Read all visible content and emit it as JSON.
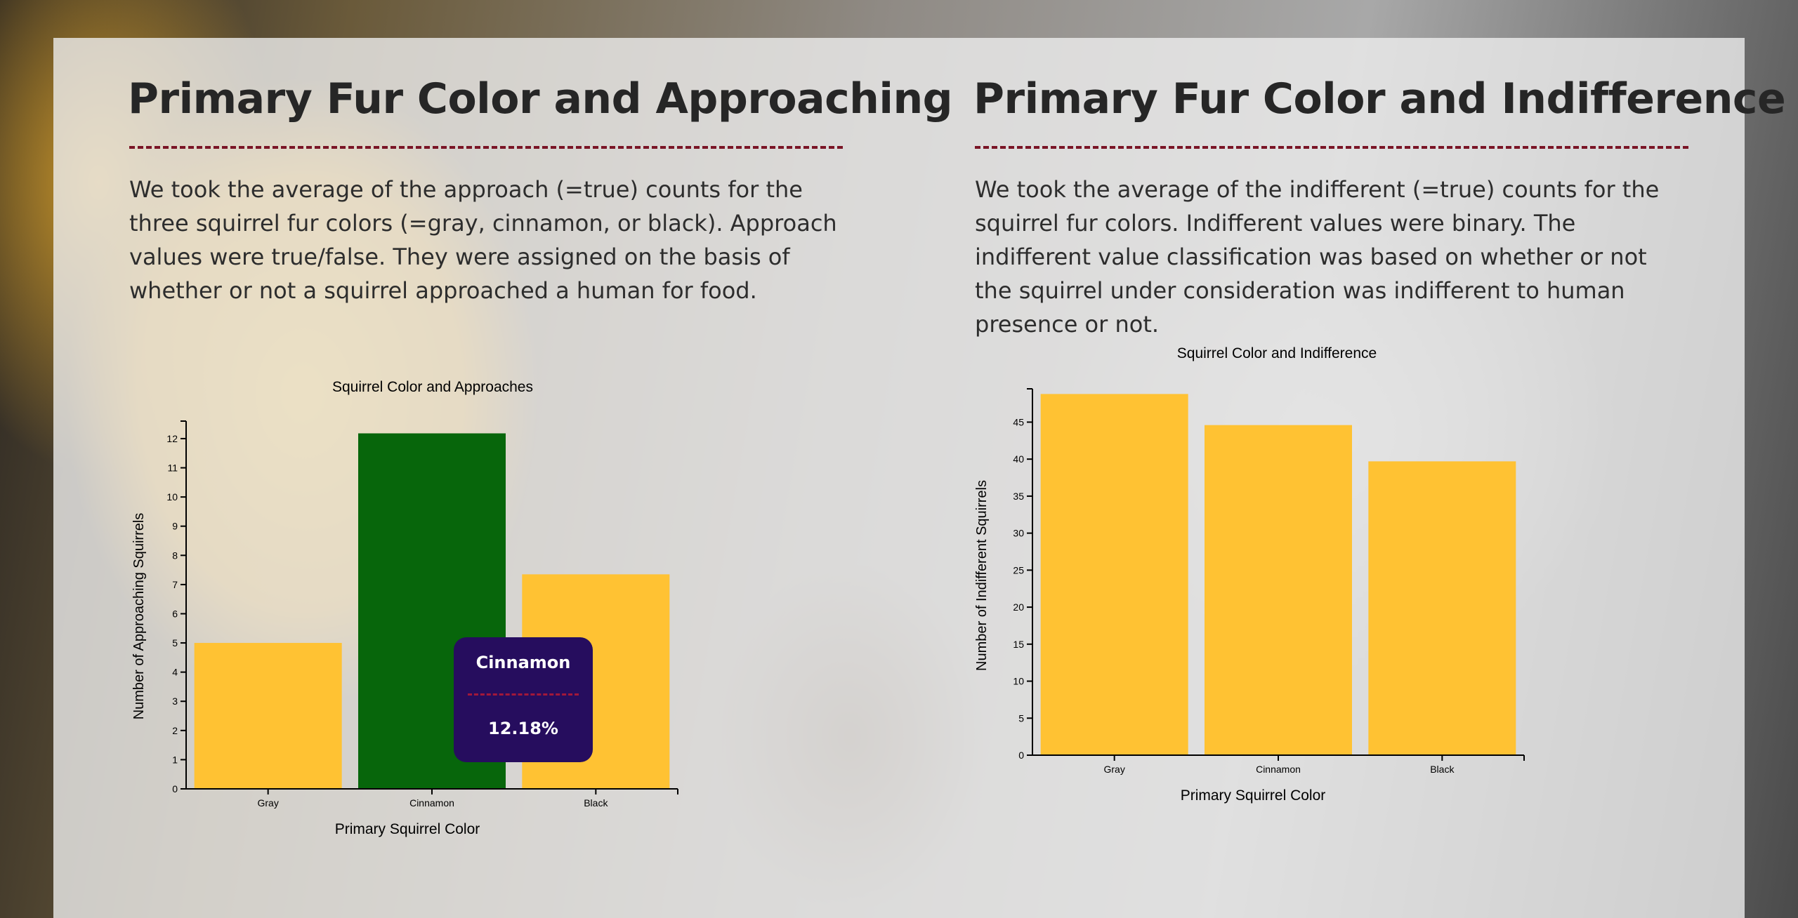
{
  "left": {
    "title": "Primary Fur Color and Approaching",
    "paragraph": "We took the average of the approach (=true) counts for the three squirrel fur colors (=gray, cinnamon, or black). Approach values were true/false. They were assigned on the basis of whether or not a squirrel approached a human for food."
  },
  "right": {
    "title": "Primary Fur Color and Indifference",
    "paragraph": "We took the average of the indifferent (=true) counts for the squirrel fur colors. Indifferent values were binary. The indifferent value classification was based on whether or not the squirrel under consideration was indifferent to human presence or not."
  },
  "tooltip": {
    "name": "Cinnamon",
    "value": "12.18%"
  },
  "chart_data": [
    {
      "type": "bar",
      "title": "Squirrel Color and Approaches",
      "xlabel": "Primary Squirrel Color",
      "ylabel": "Number of Approaching Squirrels",
      "categories": [
        "Gray",
        "Cinnamon",
        "Black"
      ],
      "values": [
        5.0,
        12.18,
        7.35
      ],
      "ylim": [
        0,
        12.6
      ],
      "yticks": [
        0,
        1,
        2,
        3,
        4,
        5,
        6,
        7,
        8,
        9,
        10,
        11,
        12
      ],
      "grid": false,
      "bar_color": "#ffc233",
      "highlight_color": "#07660b",
      "highlight_index": 1
    },
    {
      "type": "bar",
      "title": "Squirrel Color and Indifference",
      "xlabel": "Primary Squirrel Color",
      "ylabel": "Number of Indifferent Squirrels",
      "categories": [
        "Gray",
        "Cinnamon",
        "Black"
      ],
      "values": [
        48.8,
        44.6,
        39.7
      ],
      "ylim": [
        0,
        49.5
      ],
      "yticks": [
        0,
        5,
        10,
        15,
        20,
        25,
        30,
        35,
        40,
        45
      ],
      "grid": false,
      "bar_color": "#ffc233",
      "highlight_color": null,
      "highlight_index": -1
    }
  ]
}
